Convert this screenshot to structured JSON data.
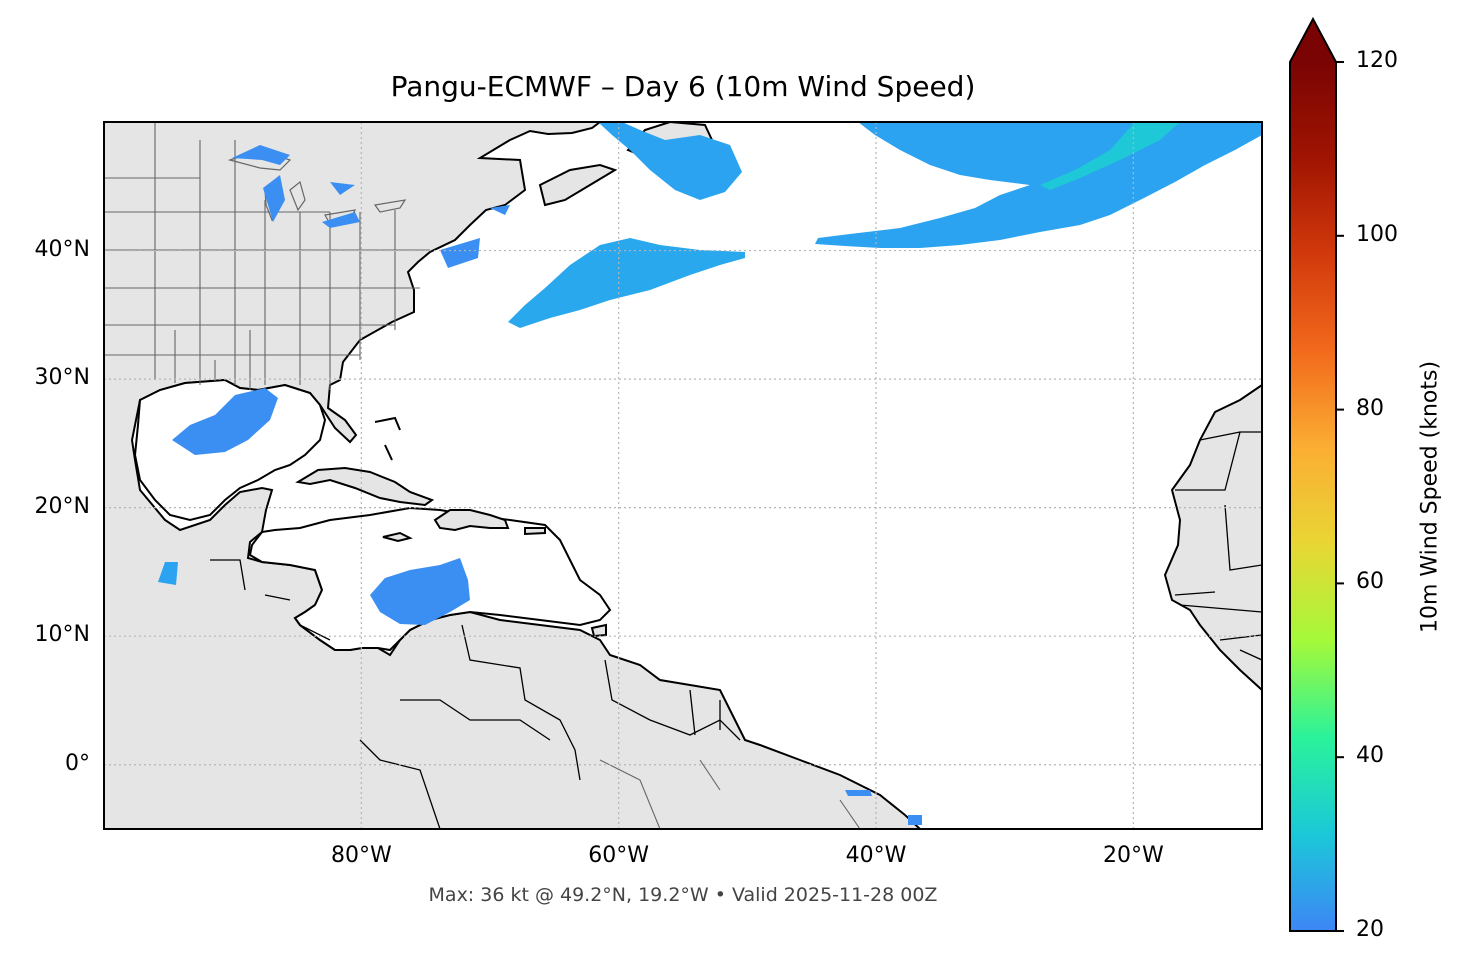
{
  "title": "Pangu-ECMWF – Day 6 (10m Wind Speed)",
  "footer": "Max: 36 kt @ 49.2°N, 19.2°W • Valid 2025-11-28 00Z",
  "map": {
    "extent": {
      "lon": [
        -100,
        -10
      ],
      "lat": [
        -5,
        50
      ]
    },
    "lat_ticks": [
      {
        "value": 40,
        "label": "40°N"
      },
      {
        "value": 30,
        "label": "30°N"
      },
      {
        "value": 20,
        "label": "20°N"
      },
      {
        "value": 10,
        "label": "10°N"
      },
      {
        "value": 0,
        "label": "0°"
      }
    ],
    "lon_ticks": [
      {
        "value": -80,
        "label": "80°W"
      },
      {
        "value": -60,
        "label": "60°W"
      },
      {
        "value": -40,
        "label": "40°W"
      },
      {
        "value": -20,
        "label": "20°W"
      }
    ],
    "gridlines": true,
    "land_color": "#e5e5e5",
    "ocean_color": "#ffffff"
  },
  "colorbar": {
    "label": "10m Wind Speed (knots)",
    "ticks": [
      "20",
      "40",
      "60",
      "80",
      "100",
      "120"
    ],
    "range": [
      20,
      120
    ],
    "extend": "max",
    "colormap": "turbo",
    "colors": [
      "#3d86f5",
      "#1bc8d8",
      "#2af29b",
      "#a4f93a",
      "#e8d634",
      "#fbae33",
      "#f26a1c",
      "#d23a0c",
      "#a01402",
      "#7a0403"
    ]
  },
  "chart_data": {
    "type": "heatmap",
    "title": "Pangu-ECMWF – Day 6 (10m Wind Speed)",
    "variable": "10m Wind Speed",
    "units": "knots",
    "max": {
      "value": 36,
      "lat": 49.2,
      "lon": -19.2
    },
    "valid": "2025-11-28 00Z"
  }
}
